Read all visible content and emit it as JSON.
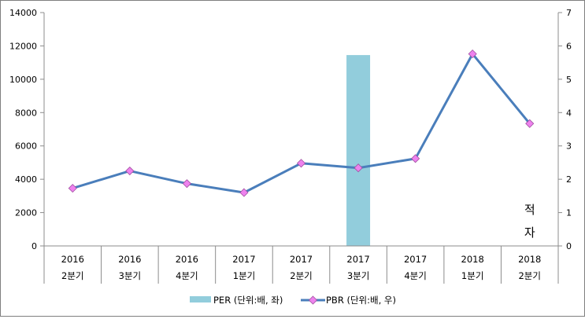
{
  "chart_data": {
    "type": "bar+line",
    "categories": [
      [
        "2016",
        "2분기"
      ],
      [
        "2016",
        "3분기"
      ],
      [
        "2016",
        "4분기"
      ],
      [
        "2017",
        "1분기"
      ],
      [
        "2017",
        "2분기"
      ],
      [
        "2017",
        "3분기"
      ],
      [
        "2017",
        "4분기"
      ],
      [
        "2018",
        "1분기"
      ],
      [
        "2018",
        "2분기"
      ]
    ],
    "series": [
      {
        "name": "PER (단위:배, 좌)",
        "type": "bar",
        "axis": "left",
        "color": "#92cddc",
        "values": [
          null,
          null,
          null,
          null,
          null,
          11450,
          null,
          null,
          null
        ]
      },
      {
        "name": "PBR (단위:배, 우)",
        "type": "line",
        "axis": "right",
        "color": "#4a7ebb",
        "marker_color": "#ee82ee",
        "values": [
          1.73,
          2.25,
          1.87,
          1.6,
          2.48,
          2.34,
          2.62,
          5.76,
          3.67
        ]
      }
    ],
    "left_axis": {
      "min": 0,
      "max": 14000,
      "ticks": [
        "0",
        "2000",
        "4000",
        "6000",
        "8000",
        "10000",
        "12000",
        "14000"
      ]
    },
    "right_axis": {
      "min": 0,
      "max": 7,
      "ticks": [
        "0",
        "1",
        "2",
        "3",
        "4",
        "5",
        "6",
        "7"
      ]
    },
    "annotation": {
      "text": [
        "적",
        "자"
      ],
      "category_index": 8
    },
    "legend_position": "bottom",
    "grid": false
  }
}
